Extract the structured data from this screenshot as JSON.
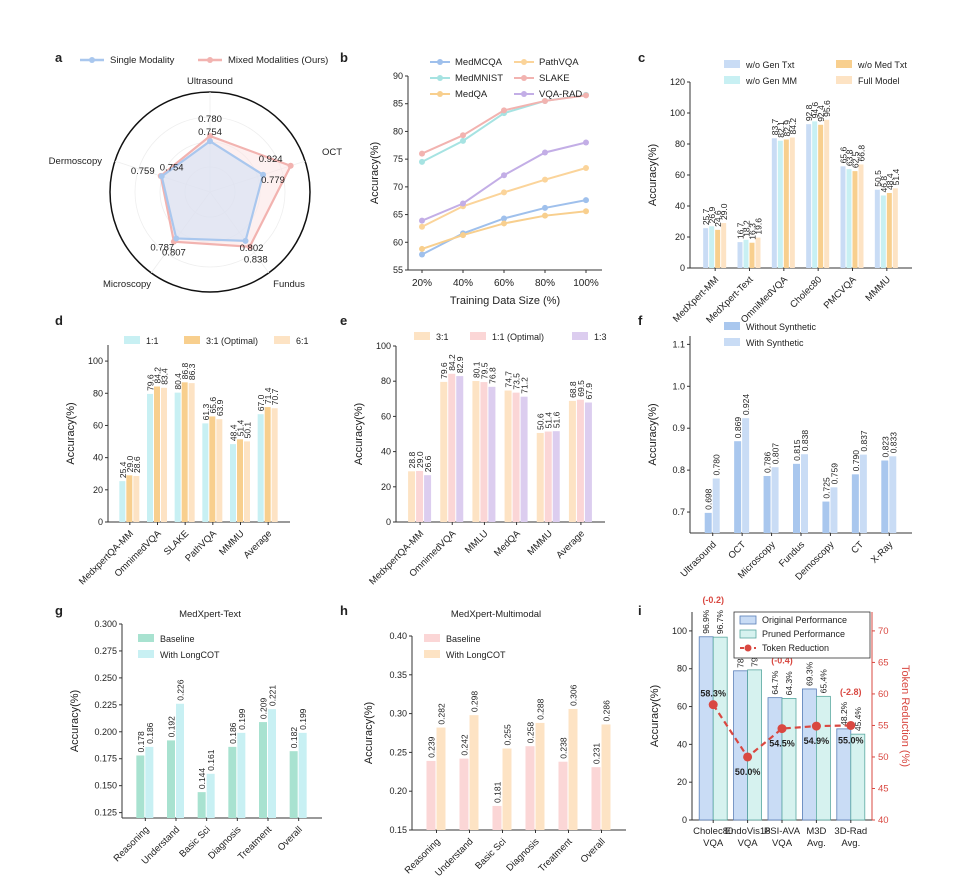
{
  "panels": {
    "a": "a",
    "b": "b",
    "c": "c",
    "d": "d",
    "e": "e",
    "f": "f",
    "g": "g",
    "h": "h",
    "i": "i"
  },
  "colors": {
    "blue_light": "#c9dcf5",
    "blue": "#a9c7ee",
    "blue_mid": "#8fb5e6",
    "blue_line": "#9fc0ec",
    "pink": "#fbd6d6",
    "pink_line": "#f2b3b0",
    "cyan": "#c8f0f3",
    "cyan_line": "#a6e3e2",
    "orange": "#f8cf8e",
    "peach": "#fde3c4",
    "purple": "#dccdef",
    "purple_line": "#c3aee6",
    "teal": "#a8e2d0",
    "red": "#d94841",
    "green": "#37a04a"
  },
  "chart_data": [
    {
      "id": "a",
      "type": "radar",
      "legend": [
        "Single Modality",
        "Mixed Modalities (Ours)"
      ],
      "axes": [
        "Ultrasound",
        "OCT",
        "Fundus",
        "Microscopy",
        "Dermoscopy"
      ],
      "series": [
        {
          "name": "Single Modality",
          "values": [
            0.754,
            0.779,
            0.802,
            0.787,
            0.754
          ]
        },
        {
          "name": "Mixed Modalities (Ours)",
          "values": [
            0.78,
            0.924,
            0.838,
            0.807,
            0.759
          ]
        }
      ],
      "labels_single": [
        "0.754",
        "0.779",
        "0.802",
        "0.787",
        "0.754"
      ],
      "labels_mixed": [
        "0.780",
        "0.924",
        "0.838",
        "0.807",
        "0.759"
      ],
      "range": [
        0.5,
        1.0
      ]
    },
    {
      "id": "b",
      "type": "line",
      "xlabel": "Training Data Size (%)",
      "ylabel": "Accuracy(%)",
      "categories": [
        "20%",
        "40%",
        "60%",
        "80%",
        "100%"
      ],
      "yticks": [
        "55",
        "60",
        "65",
        "70",
        "75",
        "80",
        "85",
        "90"
      ],
      "ylim": [
        55,
        90
      ],
      "series": [
        {
          "name": "MedMCQA",
          "color": "#9fc0ec",
          "values": [
            57.8,
            61.6,
            64.3,
            66.2,
            67.6
          ]
        },
        {
          "name": "MedMNIST",
          "color": "#a6e3e2",
          "values": [
            74.5,
            78.3,
            83.3,
            85.5,
            86.6
          ]
        },
        {
          "name": "MedQA",
          "color": "#f8cf8e",
          "values": [
            58.8,
            61.3,
            63.4,
            64.8,
            65.6
          ]
        },
        {
          "name": "PathVQA",
          "color": "#fbd49a",
          "values": [
            62.8,
            66.5,
            69.0,
            71.3,
            73.4
          ]
        },
        {
          "name": "SLAKE",
          "color": "#f2b3b0",
          "values": [
            76.0,
            79.3,
            83.8,
            85.5,
            86.5
          ]
        },
        {
          "name": "VQA-RAD",
          "color": "#c3aee6",
          "values": [
            63.9,
            67.0,
            72.1,
            76.2,
            78.0
          ]
        }
      ]
    },
    {
      "id": "c",
      "type": "bar",
      "ylabel": "Accuracy(%)",
      "ylim": [
        0,
        120
      ],
      "yticks": [
        "0",
        "20",
        "40",
        "60",
        "80",
        "100",
        "120"
      ],
      "categories": [
        "MedXpert-MM",
        "MedXpert-Text",
        "OmniMedVQA",
        "Cholec80",
        "PMCVQA",
        "MMMU"
      ],
      "series": [
        {
          "name": "w/o Gen Txt",
          "color": "#c9dcf5",
          "values": [
            25.7,
            16.7,
            83.7,
            92.8,
            65.6,
            50.5
          ]
        },
        {
          "name": "w/o Gen MM",
          "color": "#c8f0f3",
          "values": [
            26.9,
            18.2,
            82.1,
            94.6,
            63.8,
            46.8
          ]
        },
        {
          "name": "w/o Med Txt",
          "color": "#f8cf8e",
          "values": [
            24.6,
            16.3,
            82.9,
            92.4,
            62.5,
            48.4
          ]
        },
        {
          "name": "Full Model",
          "color": "#fde3c4",
          "values": [
            29.0,
            19.6,
            84.2,
            95.6,
            66.8,
            51.4
          ]
        }
      ],
      "labels": [
        [
          "25.7",
          "26.9",
          "24.6",
          "29.0"
        ],
        [
          "16.7",
          "18.2",
          "16.3",
          "19.6"
        ],
        [
          "83.7",
          "82.1",
          "82.9",
          "84.2"
        ],
        [
          "92.8",
          "94.6",
          "92.4",
          "95.6"
        ],
        [
          "65.6",
          "63.8",
          "62.5",
          "66.8"
        ],
        [
          "50.5",
          "46.8",
          "48.4",
          "51.4"
        ]
      ]
    },
    {
      "id": "d",
      "type": "bar",
      "ylabel": "Accuracy(%)",
      "ylim": [
        0,
        110
      ],
      "yticks": [
        "0",
        "20",
        "40",
        "60",
        "80",
        "100"
      ],
      "categories": [
        "MedxpertQA-MM",
        "OmnimedVQA",
        "SLAKE",
        "PathVQA",
        "MMMU",
        "Average"
      ],
      "series": [
        {
          "name": "1:1",
          "color": "#c8f0f3",
          "values": [
            25.4,
            79.6,
            80.4,
            61.3,
            48.4,
            67.0
          ]
        },
        {
          "name": "3:1 (Optimal)",
          "color": "#f8cf8e",
          "values": [
            29.0,
            84.2,
            86.8,
            65.6,
            51.4,
            71.4
          ]
        },
        {
          "name": "6:1",
          "color": "#fde3c4",
          "values": [
            28.6,
            83.4,
            86.3,
            63.9,
            50.1,
            70.7
          ]
        }
      ],
      "labels": [
        [
          "25.4",
          "29.0",
          "28.6"
        ],
        [
          "79.6",
          "84.2",
          "83.4"
        ],
        [
          "80.4",
          "86.8",
          "86.3"
        ],
        [
          "61.3",
          "65.6",
          "63.9"
        ],
        [
          "48.4",
          "51.4",
          "50.1"
        ],
        [
          "67.0",
          "71.4",
          "70.7"
        ]
      ]
    },
    {
      "id": "e",
      "type": "bar",
      "ylabel": "Accuracy(%)",
      "ylim": [
        0,
        100
      ],
      "yticks": [
        "0",
        "20",
        "40",
        "60",
        "80",
        "100"
      ],
      "categories": [
        "MedxpertQA-MM",
        "OmnimedVQA",
        "MMLU",
        "MedQA",
        "MMMU",
        "Average"
      ],
      "series": [
        {
          "name": "3:1",
          "color": "#fde3c4",
          "values": [
            28.8,
            79.6,
            80.1,
            74.7,
            50.6,
            68.8
          ]
        },
        {
          "name": "1:1 (Optimal)",
          "color": "#fbd6d6",
          "values": [
            29.0,
            84.2,
            79.5,
            73.5,
            51.4,
            69.5
          ]
        },
        {
          "name": "1:3",
          "color": "#dccdef",
          "values": [
            26.6,
            82.9,
            76.8,
            71.2,
            51.6,
            67.9
          ]
        }
      ],
      "labels": [
        [
          "28.8",
          "29.0",
          "26.6"
        ],
        [
          "79.6",
          "84.2",
          "82.9"
        ],
        [
          "80.1",
          "79.5",
          "76.8"
        ],
        [
          "74.7",
          "73.5",
          "71.2"
        ],
        [
          "50.6",
          "51.4",
          "51.6"
        ],
        [
          "68.8",
          "69.5",
          "67.9"
        ]
      ]
    },
    {
      "id": "f",
      "type": "bar",
      "ylabel": "Accuracy(%)",
      "ylim": [
        0.65,
        1.12
      ],
      "yticks": [
        "0.7",
        "0.8",
        "0.9",
        "1.0",
        "1.1"
      ],
      "categories": [
        "Ultrasound",
        "OCT",
        "Microscopy",
        "Fundus",
        "Demoscopy",
        "CT",
        "X-Ray"
      ],
      "series": [
        {
          "name": "Without Synthetic",
          "color": "#a9c7ee",
          "values": [
            0.698,
            0.869,
            0.786,
            0.815,
            0.725,
            0.79,
            0.823
          ]
        },
        {
          "name": "With Synthetic",
          "color": "#c9dcf5",
          "values": [
            0.78,
            0.924,
            0.807,
            0.838,
            0.759,
            0.837,
            0.833
          ]
        }
      ],
      "labels": [
        [
          "0.698",
          "0.780"
        ],
        [
          "0.869",
          "0.924"
        ],
        [
          "0.786",
          "0.807"
        ],
        [
          "0.815",
          "0.838"
        ],
        [
          "0.725",
          "0.759"
        ],
        [
          "0.790",
          "0.837"
        ],
        [
          "0.823",
          "0.833"
        ]
      ]
    },
    {
      "id": "g",
      "type": "bar",
      "title": "MedXpert-Text",
      "ylabel": "Accuracy(%)",
      "ylim": [
        0.12,
        0.3
      ],
      "yticks": [
        "0.125",
        "0.150",
        "0.175",
        "0.200",
        "0.225",
        "0.250",
        "0.275",
        "0.300"
      ],
      "categories": [
        "Reasoning",
        "Understand",
        "Basic Sci",
        "Diagnosis",
        "Treatment",
        "Overall"
      ],
      "series": [
        {
          "name": "Baseline",
          "color": "#a8e2d0",
          "values": [
            0.178,
            0.192,
            0.144,
            0.186,
            0.209,
            0.182
          ]
        },
        {
          "name": "With LongCOT",
          "color": "#c8f0f3",
          "values": [
            0.186,
            0.226,
            0.161,
            0.199,
            0.221,
            0.199
          ]
        }
      ],
      "labels": [
        [
          "0.178",
          "0.186"
        ],
        [
          "0.192",
          "0.226"
        ],
        [
          "0.144",
          "0.161"
        ],
        [
          "0.186",
          "0.199"
        ],
        [
          "0.209",
          "0.221"
        ],
        [
          "0.182",
          "0.199"
        ]
      ]
    },
    {
      "id": "h",
      "type": "bar",
      "title": "MedXpert-Multimodal",
      "ylabel": "Accuracy(%)",
      "ylim": [
        0.15,
        0.4
      ],
      "yticks": [
        "0.15",
        "0.20",
        "0.25",
        "0.30",
        "0.35",
        "0.40"
      ],
      "categories": [
        "Reasoning",
        "Understand",
        "Basic Sci",
        "Diagnosis",
        "Treatment",
        "Overall"
      ],
      "series": [
        {
          "name": "Baseline",
          "color": "#fbd6d6",
          "values": [
            0.239,
            0.242,
            0.181,
            0.258,
            0.238,
            0.231
          ]
        },
        {
          "name": "With LongCOT",
          "color": "#fde3c4",
          "values": [
            0.282,
            0.298,
            0.255,
            0.288,
            0.306,
            0.286
          ]
        }
      ],
      "labels": [
        [
          "0.239",
          "0.282"
        ],
        [
          "0.242",
          "0.298"
        ],
        [
          "0.181",
          "0.255"
        ],
        [
          "0.258",
          "0.288"
        ],
        [
          "0.238",
          "0.306"
        ],
        [
          "0.231",
          "0.286"
        ]
      ]
    },
    {
      "id": "i",
      "type": "bar+line",
      "ylabel": "Accuracy(%)",
      "y2label": "Token Reduction (%)",
      "ylim": [
        0,
        110
      ],
      "y2lim": [
        40,
        73
      ],
      "yticks": [
        "0",
        "20",
        "40",
        "60",
        "80",
        "100"
      ],
      "y2ticks": [
        "40",
        "45",
        "50",
        "55",
        "60",
        "65",
        "70"
      ],
      "categories": [
        "Cholec80 VQA",
        "EndoVis18 VQA",
        "PSI-AVA VQA",
        "M3D Avg.",
        "3D-Rad Avg."
      ],
      "cat_line1": [
        "Cholec80",
        "EndoVis18",
        "PSI-AVA",
        "M3D",
        "3D-Rad"
      ],
      "cat_line2": [
        "VQA",
        "VQA",
        "VQA",
        "Avg.",
        "Avg."
      ],
      "legend": [
        "Original Performance",
        "Pruned Performance",
        "Token Reduction"
      ],
      "original": [
        96.9,
        78.9,
        64.7,
        69.3,
        48.2
      ],
      "pruned": [
        96.7,
        79.4,
        64.3,
        65.4,
        45.4
      ],
      "orig_labels": [
        "96.9%",
        "78.9%",
        "64.7%",
        "69.3%",
        "48.2%"
      ],
      "pruned_labels": [
        "96.7%",
        "79.4%",
        "64.3%",
        "65.4%",
        "45.4%"
      ],
      "delta_labels": [
        "(-0.2)",
        "(+0.5)",
        "(-0.4)",
        "(-3.9)",
        "(-2.8)"
      ],
      "delta_positive": [
        false,
        true,
        false,
        false,
        false
      ],
      "token_reduction": [
        58.3,
        50.0,
        54.5,
        54.9,
        55.0
      ],
      "token_labels": [
        "58.3%",
        "50.0%",
        "54.5%",
        "54.9%",
        "55.0%"
      ]
    }
  ]
}
